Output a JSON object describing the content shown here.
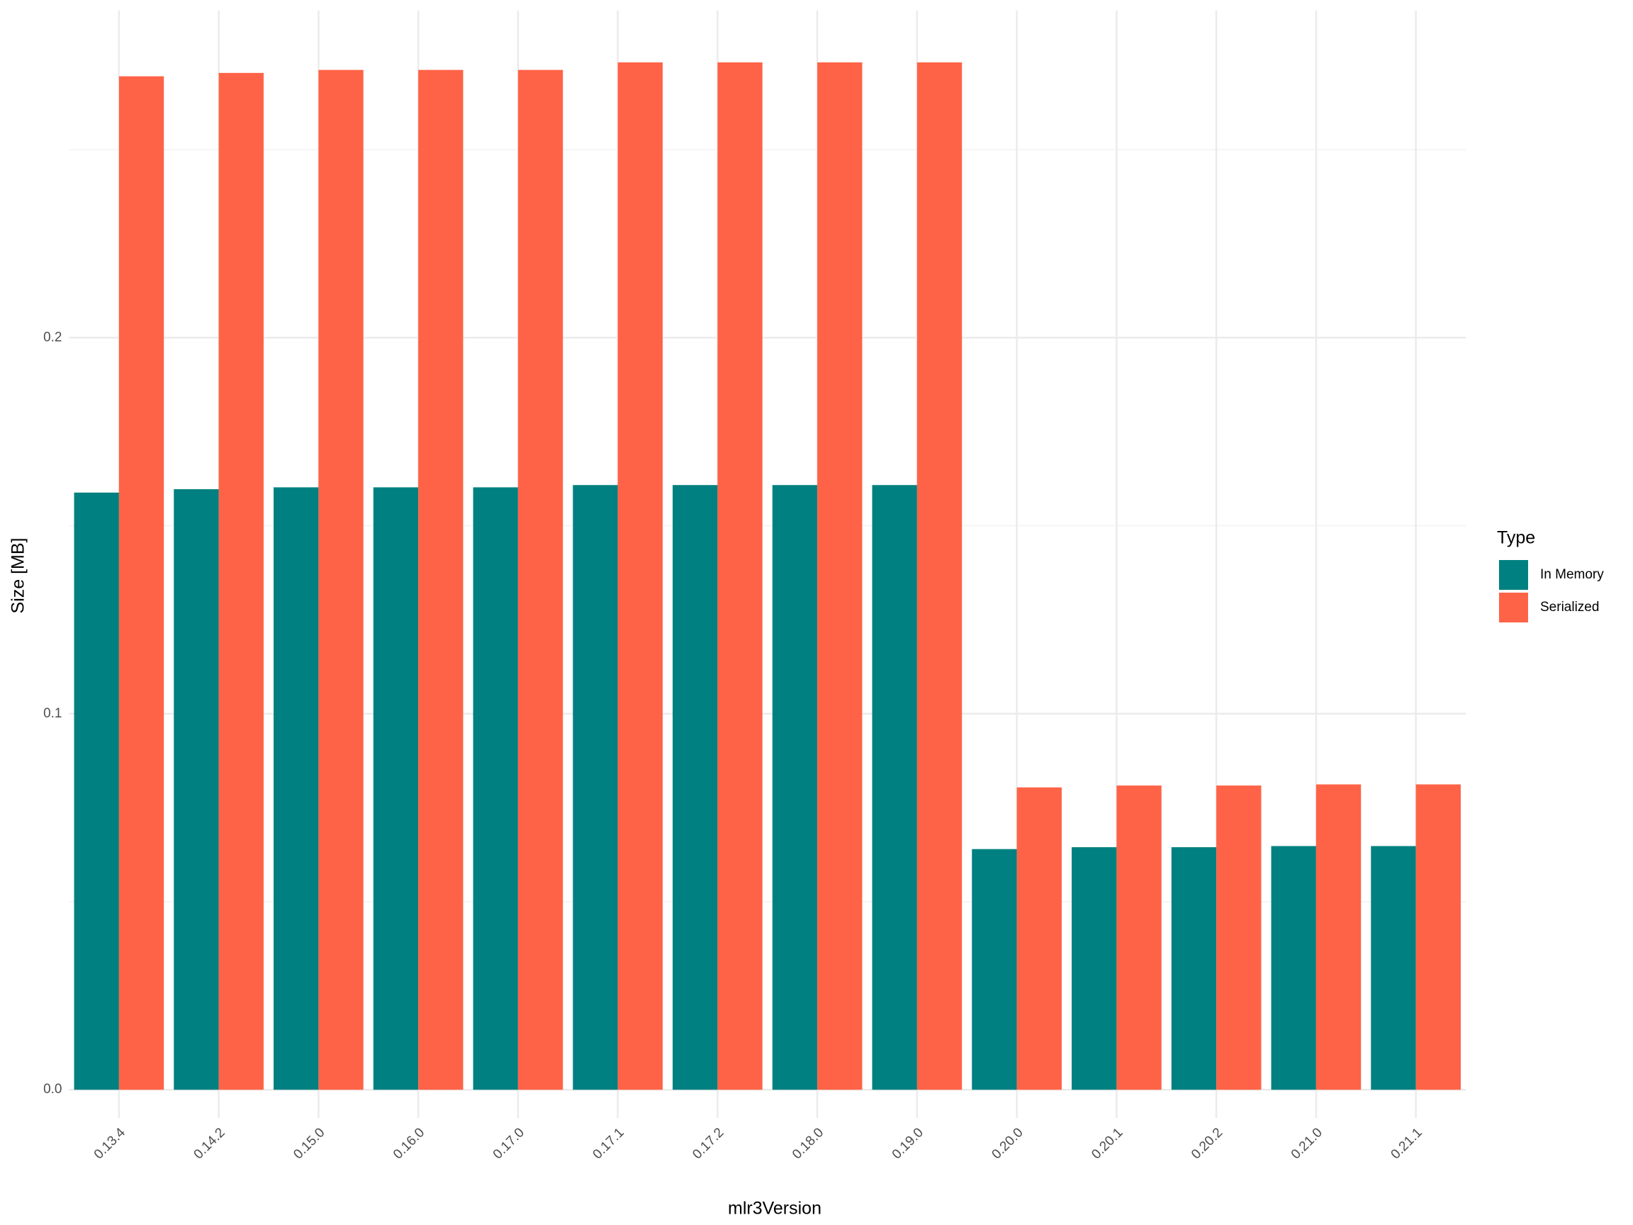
{
  "chart_data": {
    "type": "bar",
    "x_label": "mlr3Version",
    "y_label": "Size [MB]",
    "legend_title": "Type",
    "legend_position": "right",
    "categories": [
      "0.13.4",
      "0.14.2",
      "0.15.0",
      "0.16.0",
      "0.17.0",
      "0.17.1",
      "0.17.2",
      "0.18.0",
      "0.19.0",
      "0.20.0",
      "0.20.1",
      "0.20.2",
      "0.21.0",
      "0.21.1"
    ],
    "series": [
      {
        "name": "In Memory",
        "color": "#008080",
        "values": [
          0.1588,
          0.1597,
          0.1602,
          0.1602,
          0.1602,
          0.1608,
          0.1608,
          0.1608,
          0.1608,
          0.064,
          0.0645,
          0.0645,
          0.0648,
          0.0648
        ]
      },
      {
        "name": "Serialized",
        "color": "#ff6347",
        "values": [
          0.2695,
          0.2704,
          0.2712,
          0.2712,
          0.2712,
          0.2732,
          0.2732,
          0.2732,
          0.2732,
          0.0804,
          0.0809,
          0.0809,
          0.0812,
          0.0812
        ]
      }
    ],
    "ylim": [
      -0.0075,
      0.287
    ],
    "yticks": [
      {
        "value": 0,
        "label": "0.0"
      },
      0.1,
      0.2
    ],
    "grid": true
  }
}
